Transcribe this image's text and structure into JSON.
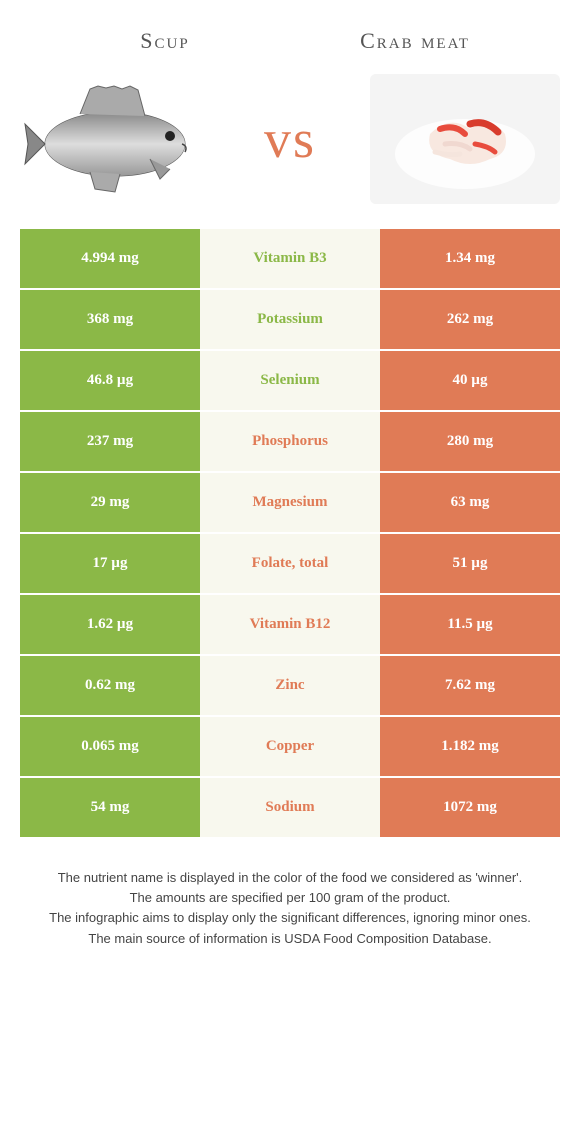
{
  "header": {
    "left_title": "Scup",
    "right_title": "Crab meat",
    "vs_text": "vs"
  },
  "colors": {
    "green": "#8bb847",
    "orange": "#e07b56",
    "mid_bg": "#f8f8ee",
    "vs_color": "#e07b56"
  },
  "rows": [
    {
      "left": "4.994 mg",
      "mid": "Vitamin B3",
      "right": "1.34 mg",
      "winner": "left"
    },
    {
      "left": "368 mg",
      "mid": "Potassium",
      "right": "262 mg",
      "winner": "left"
    },
    {
      "left": "46.8 µg",
      "mid": "Selenium",
      "right": "40 µg",
      "winner": "left"
    },
    {
      "left": "237 mg",
      "mid": "Phosphorus",
      "right": "280 mg",
      "winner": "right"
    },
    {
      "left": "29 mg",
      "mid": "Magnesium",
      "right": "63 mg",
      "winner": "right"
    },
    {
      "left": "17 µg",
      "mid": "Folate, total",
      "right": "51 µg",
      "winner": "right"
    },
    {
      "left": "1.62 µg",
      "mid": "Vitamin B12",
      "right": "11.5 µg",
      "winner": "right"
    },
    {
      "left": "0.62 mg",
      "mid": "Zinc",
      "right": "7.62 mg",
      "winner": "right"
    },
    {
      "left": "0.065 mg",
      "mid": "Copper",
      "right": "1.182 mg",
      "winner": "right"
    },
    {
      "left": "54 mg",
      "mid": "Sodium",
      "right": "1072 mg",
      "winner": "right"
    }
  ],
  "footer": {
    "line1": "The nutrient name is displayed in the color of the food we considered as 'winner'.",
    "line2": "The amounts are specified per 100 gram of the product.",
    "line3": "The infographic aims to display only the significant differences, ignoring minor ones.",
    "line4": "The main source of information is USDA Food Composition Database."
  }
}
